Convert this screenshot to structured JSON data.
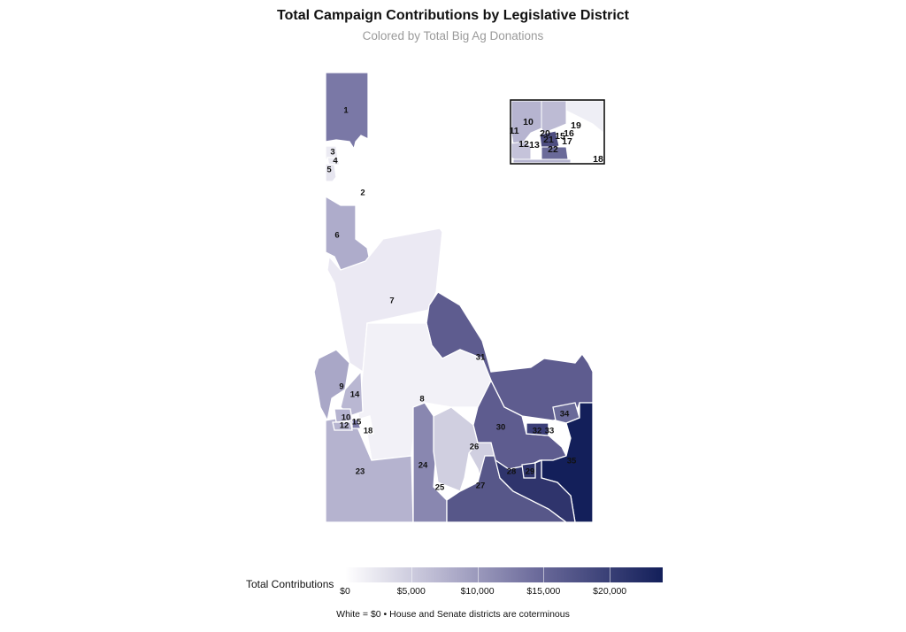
{
  "title": "Total Campaign Contributions by Legislative District",
  "subtitle": "Colored by Total Big Ag Donations",
  "legend": {
    "title": "Total Contributions",
    "ticks": [
      "$0",
      "$5,000",
      "$10,000",
      "$15,000",
      "$20,000"
    ],
    "tick_values": [
      0,
      5000,
      10000,
      15000,
      20000
    ],
    "range": [
      0,
      24000
    ],
    "color_low": "#ffffff",
    "color_high": "#131f5a"
  },
  "caption": "White = $0 • House and Senate districts are coterminous",
  "districts": [
    {
      "id": "1",
      "fill": "#7a78a6"
    },
    {
      "id": "2",
      "fill": "#ffffff"
    },
    {
      "id": "3",
      "fill": "#ecebf3"
    },
    {
      "id": "4",
      "fill": "#ecebf3"
    },
    {
      "id": "5",
      "fill": "#e6e5ef"
    },
    {
      "id": "6",
      "fill": "#aeaccb"
    },
    {
      "id": "7",
      "fill": "#ebe9f3"
    },
    {
      "id": "8",
      "fill": "#f2f1f7"
    },
    {
      "id": "9",
      "fill": "#a9a7c7"
    },
    {
      "id": "10",
      "fill": "#b6b4d0"
    },
    {
      "id": "12",
      "fill": "#b6b4d0"
    },
    {
      "id": "14",
      "fill": "#b9b7d2"
    },
    {
      "id": "15",
      "fill": "#7e7caa"
    },
    {
      "id": "18",
      "fill": "#ffffff"
    },
    {
      "id": "23",
      "fill": "#b5b3cf"
    },
    {
      "id": "24",
      "fill": "#8987b0"
    },
    {
      "id": "25",
      "fill": "#d0cfe0"
    },
    {
      "id": "26",
      "fill": "#d0cfe0"
    },
    {
      "id": "27",
      "fill": "#575789"
    },
    {
      "id": "28",
      "fill": "#2f346c"
    },
    {
      "id": "29",
      "fill": "#2f346c"
    },
    {
      "id": "30",
      "fill": "#5e5c8f"
    },
    {
      "id": "31",
      "fill": "#5e5c8f"
    },
    {
      "id": "32",
      "fill": "#3c3f78"
    },
    {
      "id": "33",
      "fill": "#ffffff"
    },
    {
      "id": "34",
      "fill": "#6a6a99"
    },
    {
      "id": "35",
      "fill": "#131f5a"
    }
  ],
  "inset_labels": [
    "10",
    "11",
    "12",
    "13",
    "15",
    "16",
    "17",
    "18",
    "19",
    "20",
    "21",
    "22"
  ]
}
